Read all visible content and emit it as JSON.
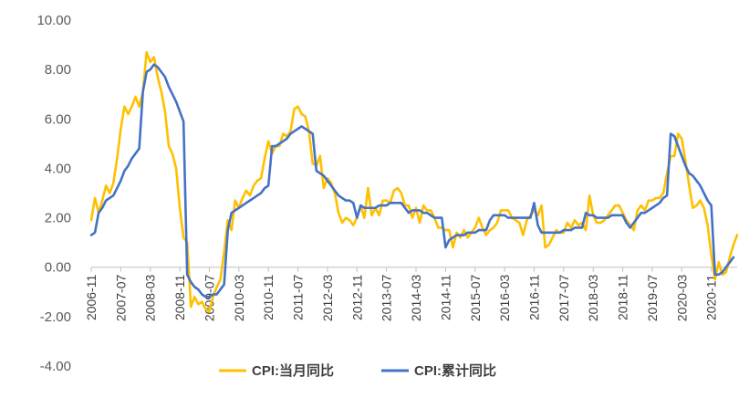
{
  "chart_data": {
    "type": "line",
    "title": "",
    "xlabel": "",
    "ylabel": "",
    "ylim": [
      -4,
      10
    ],
    "yticks": [
      "10.00",
      "8.00",
      "6.00",
      "4.00",
      "2.00",
      "0.00",
      "-2.00",
      "-4.00"
    ],
    "ytick_values": [
      10,
      8,
      6,
      4,
      2,
      0,
      -2,
      -4
    ],
    "xticks": [
      "2006-11",
      "2007-07",
      "2008-03",
      "2008-11",
      "2009-07",
      "2010-03",
      "2010-11",
      "2011-07",
      "2012-03",
      "2012-11",
      "2013-07",
      "2014-03",
      "2014-11",
      "2015-07",
      "2016-03",
      "2016-11",
      "2017-07",
      "2018-03",
      "2018-11",
      "2019-07",
      "2020-03",
      "2020-11"
    ],
    "grid": false,
    "legend_position": "bottom",
    "x_start": "2006-11",
    "series": [
      {
        "name": "CPI:当月同比",
        "color": "#FFC000",
        "values": [
          1.9,
          2.8,
          2.2,
          2.7,
          3.3,
          3.0,
          3.4,
          4.4,
          5.6,
          6.5,
          6.2,
          6.5,
          6.9,
          6.5,
          7.1,
          8.7,
          8.3,
          8.5,
          7.7,
          7.1,
          6.3,
          4.9,
          4.6,
          4.0,
          2.4,
          1.2,
          1.0,
          -1.6,
          -1.2,
          -1.5,
          -1.4,
          -1.7,
          -1.8,
          -1.2,
          -0.8,
          -0.5,
          0.6,
          1.9,
          1.5,
          2.7,
          2.4,
          2.8,
          3.1,
          2.9,
          3.3,
          3.5,
          3.6,
          4.4,
          5.1,
          4.6,
          4.9,
          4.9,
          5.4,
          5.3,
          5.5,
          6.4,
          6.5,
          6.2,
          6.1,
          5.5,
          4.2,
          4.1,
          4.5,
          3.2,
          3.6,
          3.4,
          3.0,
          2.2,
          1.8,
          2.0,
          1.9,
          1.7,
          2.0,
          2.5,
          2.0,
          3.2,
          2.1,
          2.4,
          2.1,
          2.7,
          2.7,
          2.6,
          3.1,
          3.2,
          3.0,
          2.5,
          2.5,
          2.0,
          2.4,
          1.8,
          2.5,
          2.3,
          2.3,
          2.0,
          1.6,
          1.6,
          1.5,
          1.5,
          0.8,
          1.4,
          1.2,
          1.5,
          1.2,
          1.4,
          1.6,
          2.0,
          1.6,
          1.3,
          1.5,
          1.6,
          1.8,
          2.3,
          2.3,
          2.3,
          2.0,
          1.9,
          1.8,
          1.3,
          1.9,
          2.1,
          2.3,
          2.1,
          2.5,
          0.8,
          0.9,
          1.2,
          1.5,
          1.4,
          1.4,
          1.8,
          1.6,
          1.9,
          1.7,
          1.8,
          1.5,
          2.9,
          2.1,
          1.8,
          1.8,
          1.9,
          2.1,
          2.3,
          2.5,
          2.5,
          2.2,
          1.9,
          1.7,
          1.5,
          2.3,
          2.5,
          2.3,
          2.7,
          2.7,
          2.8,
          2.8,
          3.0,
          3.8,
          4.5,
          4.5,
          5.4,
          5.2,
          4.3,
          3.3,
          2.4,
          2.5,
          2.7,
          2.4,
          1.7,
          0.5,
          -0.5,
          0.2,
          -0.3,
          -0.2,
          0.4,
          0.9,
          1.3
        ]
      },
      {
        "name": "CPI:累计同比",
        "color": "#4472C4",
        "values": [
          1.3,
          1.4,
          2.2,
          2.4,
          2.7,
          2.8,
          2.9,
          3.2,
          3.5,
          3.9,
          4.1,
          4.4,
          4.6,
          4.8,
          7.1,
          7.9,
          8.0,
          8.2,
          8.1,
          7.9,
          7.7,
          7.3,
          7.0,
          6.7,
          6.3,
          5.9,
          -0.3,
          -0.6,
          -0.8,
          -0.9,
          -1.1,
          -1.2,
          -1.2,
          -1.1,
          -1.1,
          -0.9,
          -0.7,
          1.5,
          2.2,
          2.3,
          2.4,
          2.5,
          2.6,
          2.7,
          2.8,
          2.9,
          3.0,
          3.2,
          3.3,
          4.9,
          4.9,
          5.0,
          5.1,
          5.2,
          5.4,
          5.5,
          5.6,
          5.7,
          5.6,
          5.5,
          5.4,
          3.9,
          3.8,
          3.7,
          3.5,
          3.3,
          3.1,
          2.9,
          2.8,
          2.7,
          2.7,
          2.6,
          2.0,
          2.5,
          2.4,
          2.4,
          2.4,
          2.4,
          2.5,
          2.5,
          2.5,
          2.6,
          2.6,
          2.6,
          2.6,
          2.4,
          2.2,
          2.3,
          2.3,
          2.3,
          2.2,
          2.2,
          2.1,
          2.0,
          2.0,
          2.0,
          0.8,
          1.1,
          1.2,
          1.3,
          1.3,
          1.3,
          1.4,
          1.4,
          1.4,
          1.5,
          1.5,
          1.5,
          1.9,
          2.1,
          2.1,
          2.1,
          2.1,
          2.0,
          2.0,
          2.0,
          2.0,
          2.0,
          2.0,
          2.0,
          2.6,
          1.7,
          1.4,
          1.4,
          1.4,
          1.4,
          1.4,
          1.4,
          1.5,
          1.5,
          1.5,
          1.6,
          1.6,
          1.6,
          2.2,
          2.1,
          2.1,
          2.0,
          2.0,
          2.0,
          2.0,
          2.1,
          2.1,
          2.1,
          2.1,
          1.8,
          1.6,
          1.8,
          2.0,
          2.2,
          2.2,
          2.3,
          2.4,
          2.5,
          2.6,
          2.8,
          2.9,
          5.4,
          5.3,
          4.9,
          4.5,
          4.1,
          3.8,
          3.7,
          3.5,
          3.3,
          3.0,
          2.7,
          2.5,
          -0.3,
          -0.3,
          -0.2,
          0.0,
          0.2,
          0.4
        ]
      }
    ]
  }
}
